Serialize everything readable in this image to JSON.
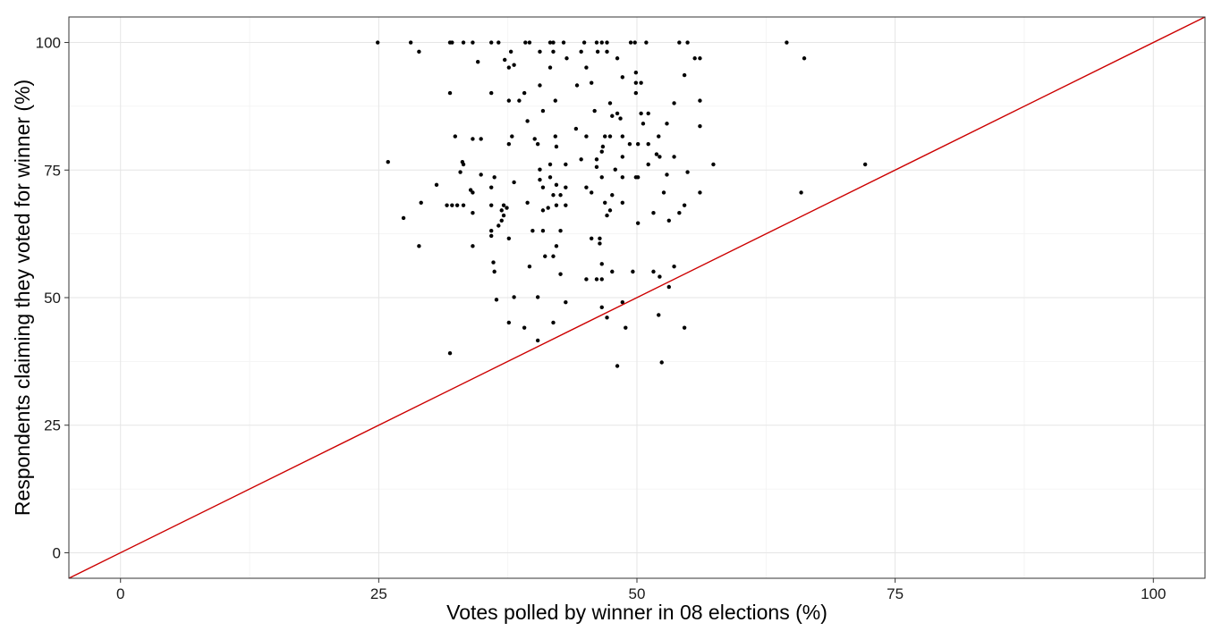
{
  "chart_data": {
    "type": "scatter",
    "title": "",
    "xlabel": "Votes polled by winner in 08 elections (%)",
    "ylabel": "Respondents claiming they voted for winner (%)",
    "xlim": [
      -5,
      105
    ],
    "ylim": [
      -5,
      105
    ],
    "x_ticks": [
      0,
      25,
      50,
      75,
      100
    ],
    "y_ticks": [
      0,
      25,
      50,
      75,
      100
    ],
    "x_tick_labels": [
      "0",
      "25",
      "50",
      "75",
      "100"
    ],
    "y_tick_labels": [
      "0",
      "25",
      "50",
      "75",
      "100"
    ],
    "grid": true,
    "legend": "none",
    "colors": {
      "points": "#000000",
      "reference_line": "#cc0000",
      "grid": "#e5e5e5",
      "panel_border": "#333333"
    },
    "reference_line": {
      "slope": 1,
      "intercept": 0
    },
    "points": [
      [
        24.9,
        100
      ],
      [
        28.1,
        100
      ],
      [
        31.9,
        100
      ],
      [
        32.1,
        100
      ],
      [
        33.2,
        100
      ],
      [
        34.1,
        100
      ],
      [
        35.9,
        100
      ],
      [
        36.6,
        100
      ],
      [
        39.2,
        100
      ],
      [
        39.6,
        100
      ],
      [
        41.6,
        100
      ],
      [
        41.9,
        100
      ],
      [
        42.9,
        100
      ],
      [
        44.9,
        100
      ],
      [
        46.1,
        100
      ],
      [
        46.6,
        100
      ],
      [
        47.1,
        100
      ],
      [
        49.4,
        100
      ],
      [
        49.8,
        100
      ],
      [
        50.9,
        100
      ],
      [
        54.1,
        100
      ],
      [
        54.9,
        100
      ],
      [
        64.5,
        100
      ],
      [
        28.9,
        98.2
      ],
      [
        37.8,
        98.2
      ],
      [
        41.9,
        98.2
      ],
      [
        40.6,
        98.2
      ],
      [
        44.6,
        98.2
      ],
      [
        46.2,
        98.2
      ],
      [
        47.1,
        98.2
      ],
      [
        55.6,
        96.9
      ],
      [
        56.1,
        96.9
      ],
      [
        66.2,
        96.9
      ],
      [
        43.2,
        96.9
      ],
      [
        48.1,
        96.9
      ],
      [
        37.2,
        96.6
      ],
      [
        34.6,
        96.2
      ],
      [
        37.6,
        95.1
      ],
      [
        38.1,
        95.6
      ],
      [
        41.6,
        95.1
      ],
      [
        45.1,
        95.1
      ],
      [
        49.9,
        94.1
      ],
      [
        48.6,
        93.2
      ],
      [
        54.6,
        93.6
      ],
      [
        40.6,
        91.6
      ],
      [
        44.2,
        91.6
      ],
      [
        45.6,
        92.1
      ],
      [
        49.9,
        92.1
      ],
      [
        50.4,
        92.1
      ],
      [
        31.9,
        90.1
      ],
      [
        35.9,
        90.1
      ],
      [
        39.1,
        90.1
      ],
      [
        49.9,
        90.1
      ],
      [
        37.6,
        88.6
      ],
      [
        38.6,
        88.6
      ],
      [
        42.1,
        88.6
      ],
      [
        47.4,
        88.1
      ],
      [
        53.6,
        88.1
      ],
      [
        56.1,
        88.6
      ],
      [
        40.9,
        86.6
      ],
      [
        45.9,
        86.6
      ],
      [
        48.1,
        86.1
      ],
      [
        50.4,
        86.1
      ],
      [
        51.1,
        86.1
      ],
      [
        47.6,
        85.6
      ],
      [
        48.4,
        85.1
      ],
      [
        39.4,
        84.6
      ],
      [
        50.6,
        84.1
      ],
      [
        52.9,
        84.1
      ],
      [
        56.1,
        83.6
      ],
      [
        44.1,
        83.1
      ],
      [
        32.4,
        81.6
      ],
      [
        34.1,
        81.1
      ],
      [
        34.9,
        81.1
      ],
      [
        37.9,
        81.6
      ],
      [
        40.1,
        81.1
      ],
      [
        42.1,
        81.6
      ],
      [
        45.1,
        81.6
      ],
      [
        46.9,
        81.6
      ],
      [
        47.4,
        81.6
      ],
      [
        48.6,
        81.6
      ],
      [
        52.1,
        81.6
      ],
      [
        51.1,
        80.1
      ],
      [
        37.6,
        80.1
      ],
      [
        40.4,
        80.1
      ],
      [
        42.2,
        79.6
      ],
      [
        46.7,
        79.6
      ],
      [
        49.3,
        80.1
      ],
      [
        50.1,
        80.1
      ],
      [
        46.6,
        78.6
      ],
      [
        51.9,
        78.1
      ],
      [
        52.2,
        77.6
      ],
      [
        48.6,
        77.6
      ],
      [
        44.6,
        77.1
      ],
      [
        46.1,
        77.1
      ],
      [
        53.6,
        77.6
      ],
      [
        25.9,
        76.6
      ],
      [
        33.1,
        76.6
      ],
      [
        33.2,
        76.1
      ],
      [
        43.1,
        76.1
      ],
      [
        41.6,
        76.1
      ],
      [
        51.1,
        76.1
      ],
      [
        57.4,
        76.1
      ],
      [
        72.1,
        76.1
      ],
      [
        32.9,
        74.6
      ],
      [
        34.9,
        74.1
      ],
      [
        40.6,
        75.1
      ],
      [
        46.1,
        75.6
      ],
      [
        47.9,
        75.1
      ],
      [
        54.9,
        74.6
      ],
      [
        36.2,
        73.6
      ],
      [
        38.1,
        72.6
      ],
      [
        40.6,
        73.1
      ],
      [
        41.6,
        73.6
      ],
      [
        46.6,
        73.6
      ],
      [
        48.6,
        73.6
      ],
      [
        49.9,
        73.6
      ],
      [
        50.1,
        73.6
      ],
      [
        52.9,
        74.1
      ],
      [
        30.6,
        72.1
      ],
      [
        42.2,
        72.1
      ],
      [
        43.1,
        71.6
      ],
      [
        33.9,
        71.1
      ],
      [
        34.1,
        70.6
      ],
      [
        35.9,
        71.6
      ],
      [
        40.9,
        71.6
      ],
      [
        45.1,
        71.6
      ],
      [
        45.6,
        70.6
      ],
      [
        41.9,
        70.1
      ],
      [
        42.6,
        70.1
      ],
      [
        47.6,
        70.1
      ],
      [
        52.6,
        70.6
      ],
      [
        56.1,
        70.6
      ],
      [
        65.9,
        70.6
      ],
      [
        29.1,
        68.6
      ],
      [
        31.6,
        68.1
      ],
      [
        32.1,
        68.1
      ],
      [
        32.6,
        68.1
      ],
      [
        33.2,
        68.1
      ],
      [
        35.9,
        68.1
      ],
      [
        37.1,
        68.1
      ],
      [
        37.4,
        67.6
      ],
      [
        39.4,
        68.6
      ],
      [
        42.2,
        68.1
      ],
      [
        43.1,
        68.1
      ],
      [
        46.9,
        68.6
      ],
      [
        48.6,
        68.6
      ],
      [
        54.6,
        68.1
      ],
      [
        34.1,
        66.6
      ],
      [
        36.9,
        67.1
      ],
      [
        40.9,
        67.1
      ],
      [
        41.4,
        67.6
      ],
      [
        47.4,
        67.1
      ],
      [
        47.1,
        66.1
      ],
      [
        51.6,
        66.6
      ],
      [
        54.1,
        66.6
      ],
      [
        37.1,
        66.1
      ],
      [
        27.4,
        65.6
      ],
      [
        36.9,
        65.1
      ],
      [
        36.6,
        64.1
      ],
      [
        53.1,
        65.1
      ],
      [
        50.1,
        64.6
      ],
      [
        35.9,
        63.1
      ],
      [
        39.9,
        63.1
      ],
      [
        40.9,
        63.1
      ],
      [
        42.6,
        63.1
      ],
      [
        35.9,
        62.1
      ],
      [
        37.6,
        61.6
      ],
      [
        45.6,
        61.6
      ],
      [
        46.4,
        61.6
      ],
      [
        46.4,
        60.6
      ],
      [
        28.9,
        60.1
      ],
      [
        34.1,
        60.1
      ],
      [
        42.2,
        60.1
      ],
      [
        41.1,
        58.1
      ],
      [
        41.9,
        58.1
      ],
      [
        36.1,
        56.9
      ],
      [
        39.6,
        56.1
      ],
      [
        46.6,
        56.6
      ],
      [
        53.6,
        56.1
      ],
      [
        36.2,
        55.1
      ],
      [
        42.6,
        54.6
      ],
      [
        47.6,
        55.1
      ],
      [
        49.6,
        55.1
      ],
      [
        51.6,
        55.1
      ],
      [
        52.2,
        54.1
      ],
      [
        45.1,
        53.6
      ],
      [
        46.1,
        53.6
      ],
      [
        46.6,
        53.6
      ],
      [
        53.1,
        52.1
      ],
      [
        38.1,
        50.1
      ],
      [
        40.4,
        50.1
      ],
      [
        36.4,
        49.6
      ],
      [
        43.1,
        49.1
      ],
      [
        48.6,
        49.1
      ],
      [
        46.6,
        48.1
      ],
      [
        47.1,
        46.1
      ],
      [
        52.1,
        46.6
      ],
      [
        37.6,
        45.1
      ],
      [
        41.9,
        45.1
      ],
      [
        39.1,
        44.1
      ],
      [
        48.9,
        44.1
      ],
      [
        54.6,
        44.1
      ],
      [
        40.4,
        41.6
      ],
      [
        31.9,
        39.1
      ],
      [
        52.4,
        37.3
      ],
      [
        48.1,
        36.6
      ]
    ]
  }
}
